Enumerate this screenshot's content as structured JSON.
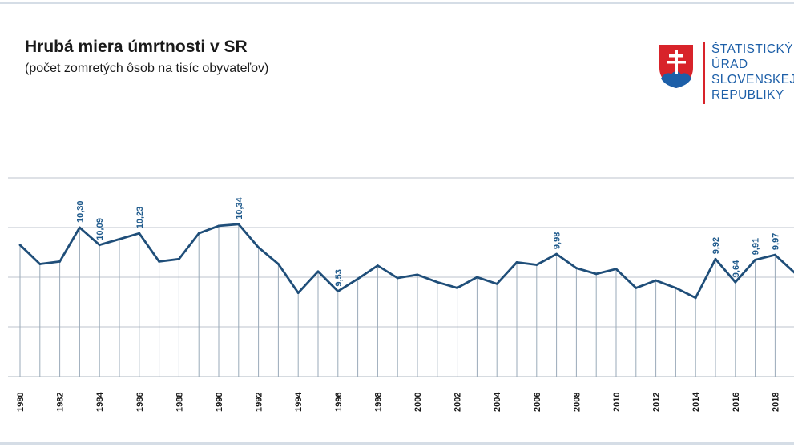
{
  "header": {
    "title": "Hrubá miera úmrtnosti v SR",
    "subtitle": "(počet zomretých ôsob na tisíc obyvateľov)"
  },
  "logo": {
    "lines": [
      "ŠTATISTICKÝ",
      "ÚRAD",
      "SLOVENSKEJ",
      "REPUBLIKY"
    ],
    "icon": "slovak-coat-of-arms-icon",
    "brand_color": "#1d5fa8",
    "accent_color": "#d8232a"
  },
  "chart_data": {
    "type": "line",
    "title": "Hrubá miera úmrtnosti v SR",
    "subtitle": "(počet zomretých ôsob na tisíc obyvateľov)",
    "xlabel": "",
    "ylabel": "",
    "ylim": [
      8.5,
      10.9
    ],
    "grid": true,
    "line_color": "#1f4e79",
    "x": [
      1980,
      1981,
      1982,
      1983,
      1984,
      1985,
      1986,
      1987,
      1988,
      1989,
      1990,
      1991,
      1992,
      1993,
      1994,
      1995,
      1996,
      1997,
      1998,
      1999,
      2000,
      2001,
      2002,
      2003,
      2004,
      2005,
      2006,
      2007,
      2008,
      2009,
      2010,
      2011,
      2012,
      2013,
      2014,
      2015,
      2016,
      2017,
      2018,
      2019
    ],
    "values": [
      10.09,
      9.86,
      9.89,
      10.3,
      10.09,
      10.16,
      10.23,
      9.89,
      9.92,
      10.23,
      10.32,
      10.34,
      10.06,
      9.86,
      9.51,
      9.77,
      9.53,
      9.68,
      9.84,
      9.69,
      9.73,
      9.64,
      9.57,
      9.7,
      9.62,
      9.88,
      9.85,
      9.98,
      9.81,
      9.74,
      9.8,
      9.57,
      9.66,
      9.57,
      9.45,
      9.92,
      9.64,
      9.91,
      9.97,
      9.75
    ],
    "tick_labels": [
      "1980",
      "1982",
      "1984",
      "1986",
      "1988",
      "1990",
      "1992",
      "1994",
      "1996",
      "1998",
      "2000",
      "2002",
      "2004",
      "2006",
      "2008",
      "2010",
      "2012",
      "2014",
      "2016",
      "2018"
    ],
    "annotations": [
      {
        "x": 1983,
        "label": "10,30"
      },
      {
        "x": 1984,
        "label": "10,09"
      },
      {
        "x": 1986,
        "label": "10,23"
      },
      {
        "x": 1991,
        "label": "10,34"
      },
      {
        "x": 1996,
        "label": "9,53"
      },
      {
        "x": 2007,
        "label": "9,98"
      },
      {
        "x": 2015,
        "label": "9,92"
      },
      {
        "x": 2016,
        "label": "9,64"
      },
      {
        "x": 2017,
        "label": "9,91"
      },
      {
        "x": 2018,
        "label": "9,97"
      }
    ]
  }
}
